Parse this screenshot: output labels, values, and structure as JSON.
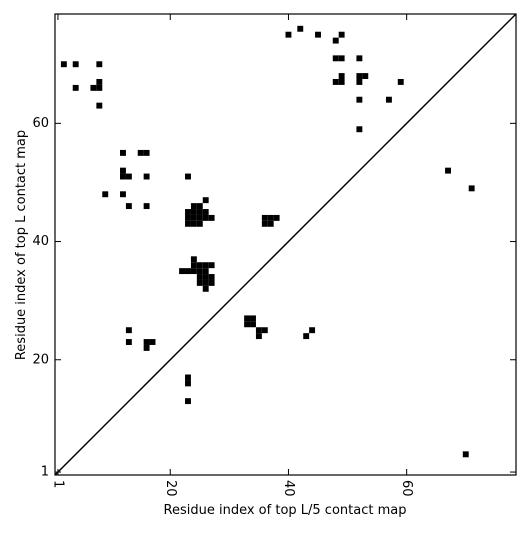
{
  "chart_data": {
    "type": "scatter",
    "xlabel": "Residue index of top L/5 contact map",
    "ylabel": "Residue index of top L contact map",
    "xlim": [
      0.5,
      78.5
    ],
    "ylim": [
      0.5,
      78.5
    ],
    "xticks": [
      1,
      20,
      40,
      60
    ],
    "yticks": [
      1,
      20,
      40,
      60
    ],
    "color": "#000000",
    "x": [
      2,
      4,
      8,
      4,
      7,
      8,
      8,
      8,
      12,
      15,
      16,
      12,
      12,
      13,
      16,
      23,
      9,
      12,
      13,
      16,
      24,
      25,
      26,
      23,
      24,
      25,
      26,
      23,
      24,
      25,
      26,
      27,
      23,
      24,
      25,
      36,
      37,
      38,
      36,
      37,
      24,
      24,
      25,
      26,
      27,
      22,
      23,
      24,
      25,
      26,
      25,
      26,
      27,
      25,
      26,
      27,
      26,
      33,
      34,
      33,
      34,
      35,
      36,
      35,
      44,
      43,
      13,
      13,
      16,
      17,
      16,
      23,
      23,
      23,
      70,
      40,
      42,
      45,
      49,
      48,
      48,
      49,
      52,
      49,
      49,
      48,
      52,
      53,
      52,
      59,
      52,
      57,
      52,
      67,
      71
    ],
    "y": [
      70,
      70,
      70,
      66,
      66,
      66,
      67,
      63,
      55,
      55,
      55,
      52,
      51,
      51,
      51,
      51,
      48,
      48,
      46,
      46,
      46,
      46,
      47,
      45,
      45,
      45,
      45,
      44,
      44,
      44,
      44,
      44,
      43,
      43,
      43,
      44,
      44,
      44,
      43,
      43,
      37,
      36,
      36,
      36,
      36,
      35,
      35,
      35,
      35,
      35,
      34,
      34,
      34,
      33,
      33,
      33,
      32,
      27,
      27,
      26,
      26,
      25,
      25,
      24,
      25,
      24,
      25,
      23,
      23,
      23,
      22,
      17,
      16,
      13,
      4,
      75,
      76,
      75,
      75,
      74,
      71,
      71,
      71,
      68,
      67,
      67,
      68,
      68,
      67,
      67,
      64,
      64,
      59,
      52,
      49
    ]
  }
}
